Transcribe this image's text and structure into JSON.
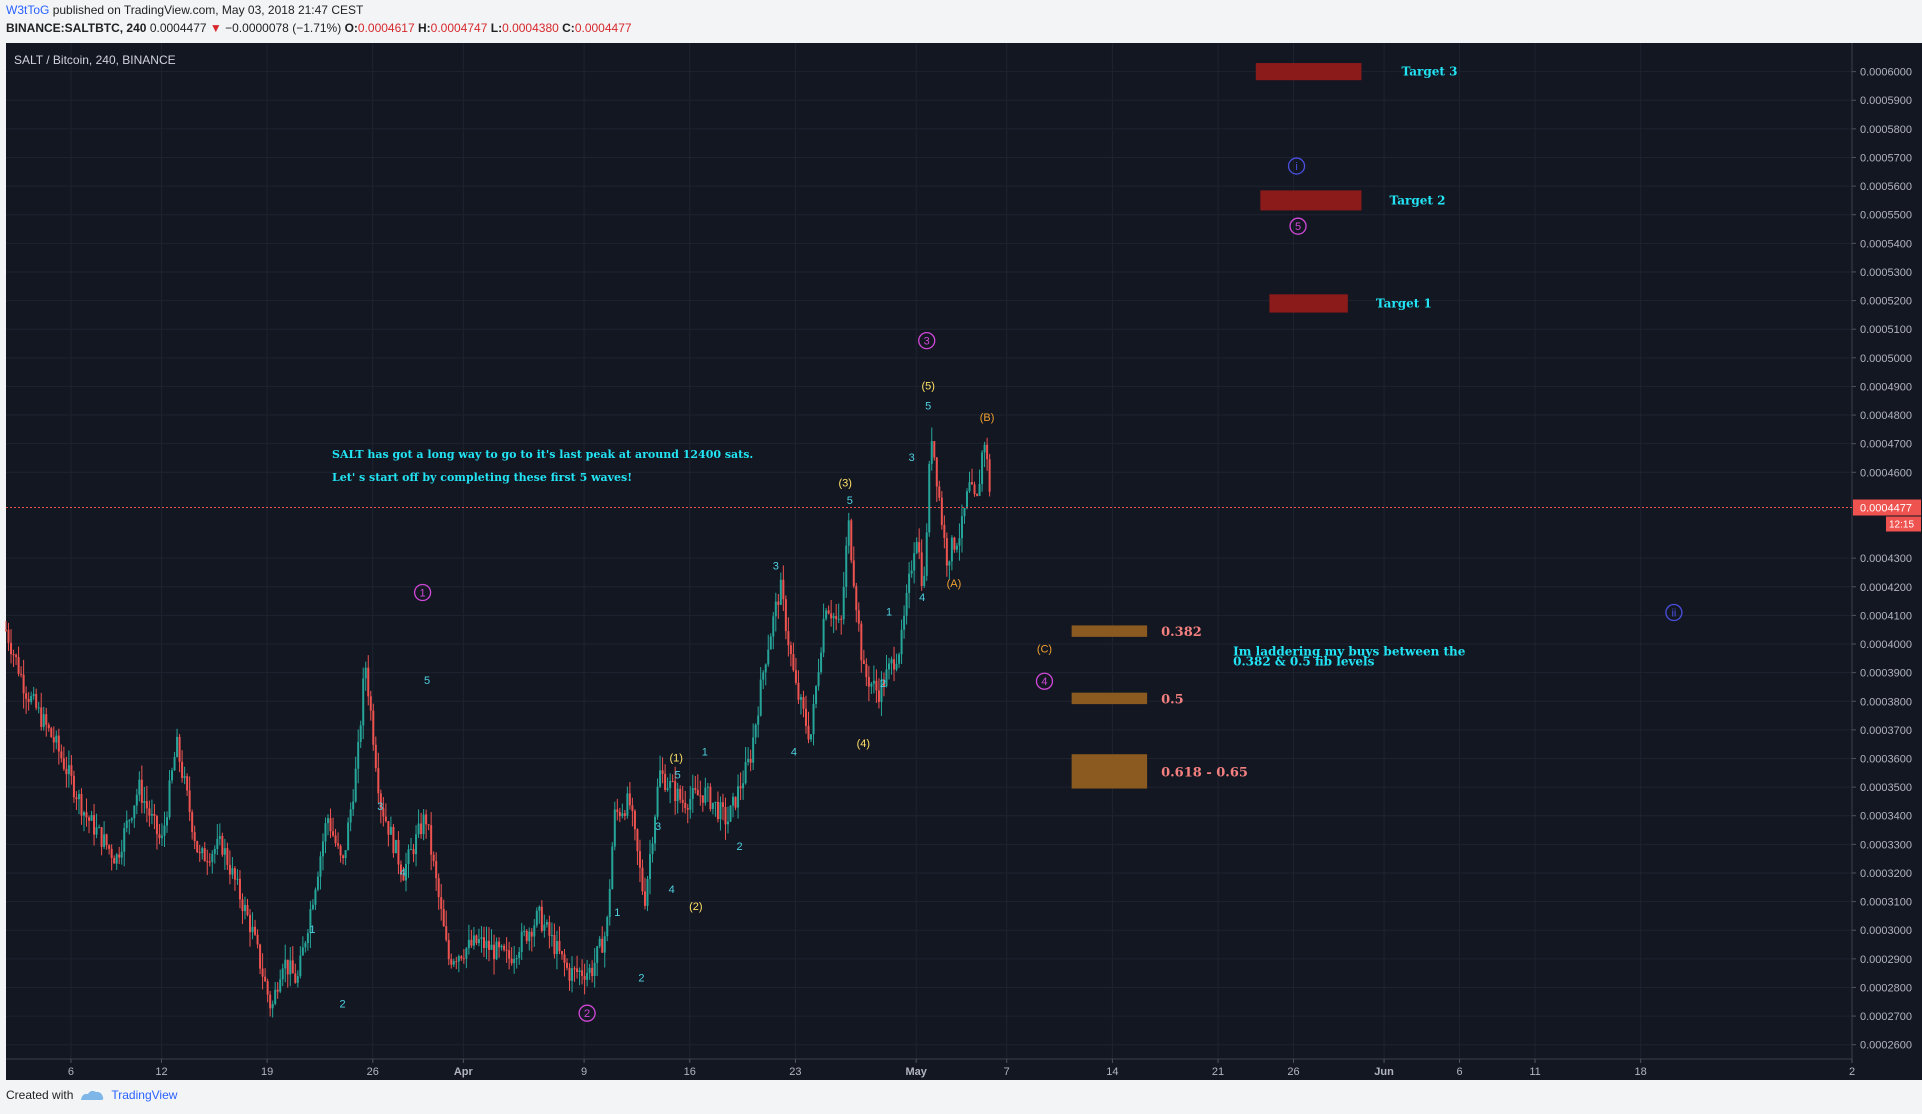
{
  "header": {
    "author": "W3tToG",
    "published_text": "published on TradingView.com, May 03, 2018 21:47 CEST",
    "symbol": "BINANCE:SALTBTC, 240",
    "last": "0.0004477",
    "change": "−0.0000078 (−1.71%)",
    "o_label": "O:",
    "o_value": "0.0004617",
    "h_label": "H:",
    "h_value": "0.0004747",
    "l_label": "L:",
    "l_value": "0.0004380",
    "c_label": "C:",
    "c_value": "0.0004477"
  },
  "footer": {
    "created_with": "Created with",
    "brand": "TradingView"
  },
  "chart_data": {
    "type": "candlestick",
    "title": "SALT / Bitcoin, 240, BINANCE",
    "ylim": [
      0.000255,
      0.00061
    ],
    "y_ticks": [
      "0.0006000",
      "0.0005900",
      "0.0005800",
      "0.0005700",
      "0.0005600",
      "0.0005500",
      "0.0005400",
      "0.0005300",
      "0.0005200",
      "0.0005100",
      "0.0005000",
      "0.0004900",
      "0.0004800",
      "0.0004700",
      "0.0004600",
      "0.0004300",
      "0.0004200",
      "0.0004100",
      "0.0004000",
      "0.0003900",
      "0.0003800",
      "0.0003700",
      "0.0003600",
      "0.0003500",
      "0.0003400",
      "0.0003300",
      "0.0003200",
      "0.0003100",
      "0.0003000",
      "0.0002900",
      "0.0002800",
      "0.0002700",
      "0.0002600"
    ],
    "x_ticks": [
      {
        "label": "6",
        "day": 6
      },
      {
        "label": "12",
        "day": 12
      },
      {
        "label": "19",
        "day": 19
      },
      {
        "label": "26",
        "day": 26
      },
      {
        "label": "Apr",
        "day": 32
      },
      {
        "label": "9",
        "day": 40
      },
      {
        "label": "16",
        "day": 47
      },
      {
        "label": "23",
        "day": 54
      },
      {
        "label": "May",
        "day": 62
      },
      {
        "label": "7",
        "day": 68
      },
      {
        "label": "14",
        "day": 75
      },
      {
        "label": "21",
        "day": 82
      },
      {
        "label": "26",
        "day": 87
      },
      {
        "label": "Jun",
        "day": 93
      },
      {
        "label": "6",
        "day": 98
      },
      {
        "label": "11",
        "day": 103
      },
      {
        "label": "18",
        "day": 110
      },
      {
        "label": "2",
        "day": 124
      }
    ],
    "x_range_days": [
      1.7,
      124
    ],
    "price_path": [
      {
        "day": 1.7,
        "price": 0.000405
      },
      {
        "day": 3,
        "price": 0.000384
      },
      {
        "day": 5,
        "price": 0.000365
      },
      {
        "day": 7,
        "price": 0.00034
      },
      {
        "day": 9,
        "price": 0.000325
      },
      {
        "day": 10.5,
        "price": 0.00035
      },
      {
        "day": 12,
        "price": 0.00033
      },
      {
        "day": 13,
        "price": 0.000365
      },
      {
        "day": 14.5,
        "price": 0.000325
      },
      {
        "day": 16,
        "price": 0.00033
      },
      {
        "day": 18,
        "price": 0.0003
      },
      {
        "day": 19.3,
        "price": 0.000272
      },
      {
        "day": 20,
        "price": 0.00029
      },
      {
        "day": 21,
        "price": 0.000282
      },
      {
        "day": 23,
        "price": 0.00034
      },
      {
        "day": 24,
        "price": 0.000322
      },
      {
        "day": 25,
        "price": 0.00036
      },
      {
        "day": 25.5,
        "price": 0.000394
      },
      {
        "day": 26.5,
        "price": 0.000345
      },
      {
        "day": 28,
        "price": 0.00032
      },
      {
        "day": 29.5,
        "price": 0.00034
      },
      {
        "day": 31,
        "price": 0.00029
      },
      {
        "day": 33,
        "price": 0.000296
      },
      {
        "day": 35,
        "price": 0.00029
      },
      {
        "day": 37,
        "price": 0.000305
      },
      {
        "day": 39,
        "price": 0.000285
      },
      {
        "day": 40.5,
        "price": 0.000286
      },
      {
        "day": 41.5,
        "price": 0.0003
      },
      {
        "day": 42,
        "price": 0.00034
      },
      {
        "day": 43,
        "price": 0.000345
      },
      {
        "day": 44,
        "price": 0.00031
      },
      {
        "day": 45,
        "price": 0.000355
      },
      {
        "day": 46.5,
        "price": 0.000345
      },
      {
        "day": 48,
        "price": 0.000348
      },
      {
        "day": 49.5,
        "price": 0.000338
      },
      {
        "day": 51,
        "price": 0.00036
      },
      {
        "day": 52,
        "price": 0.000395
      },
      {
        "day": 53,
        "price": 0.00042
      },
      {
        "day": 54,
        "price": 0.000385
      },
      {
        "day": 55,
        "price": 0.000367
      },
      {
        "day": 56,
        "price": 0.000415
      },
      {
        "day": 57,
        "price": 0.000405
      },
      {
        "day": 57.5,
        "price": 0.000443
      },
      {
        "day": 58.5,
        "price": 0.00039
      },
      {
        "day": 59.5,
        "price": 0.000383
      },
      {
        "day": 61,
        "price": 0.0004
      },
      {
        "day": 62,
        "price": 0.00044
      },
      {
        "day": 62.5,
        "price": 0.000418
      },
      {
        "day": 63,
        "price": 0.000475
      },
      {
        "day": 64,
        "price": 0.00043
      },
      {
        "day": 65,
        "price": 0.00044
      },
      {
        "day": 65.5,
        "price": 0.000455
      },
      {
        "day": 66,
        "price": 0.000448
      },
      {
        "day": 66.5,
        "price": 0.000473
      },
      {
        "day": 67,
        "price": 0.000448
      }
    ],
    "last_price": {
      "value": "0.0004477",
      "countdown": "12:15"
    },
    "wave_labels": [
      {
        "text": "1",
        "day": 22,
        "price": 0.000299,
        "color": "#4dd0e1"
      },
      {
        "text": "2",
        "day": 24,
        "price": 0.000273,
        "color": "#4dd0e1"
      },
      {
        "text": "3",
        "day": 26.5,
        "price": 0.000342,
        "color": "#4dd0e1"
      },
      {
        "text": "4",
        "day": 28,
        "price": 0.000319,
        "color": "#4dd0e1"
      },
      {
        "text": "5",
        "day": 29.6,
        "price": 0.000386,
        "color": "#4dd0e1"
      },
      {
        "text": "1",
        "day": 42.2,
        "price": 0.000305,
        "color": "#4dd0e1"
      },
      {
        "text": "2",
        "day": 43.8,
        "price": 0.000282,
        "color": "#4dd0e1"
      },
      {
        "text": "3",
        "day": 44.9,
        "price": 0.000335,
        "color": "#4dd0e1"
      },
      {
        "text": "4",
        "day": 45.8,
        "price": 0.000313,
        "color": "#4dd0e1"
      },
      {
        "text": "5",
        "day": 46.2,
        "price": 0.000353,
        "color": "#4dd0e1"
      },
      {
        "text": "1",
        "day": 48,
        "price": 0.000361,
        "color": "#4dd0e1"
      },
      {
        "text": "2",
        "day": 50.3,
        "price": 0.000328,
        "color": "#4dd0e1"
      },
      {
        "text": "3",
        "day": 52.7,
        "price": 0.000426,
        "color": "#4dd0e1"
      },
      {
        "text": "4",
        "day": 53.9,
        "price": 0.000361,
        "color": "#4dd0e1"
      },
      {
        "text": "5",
        "day": 57.6,
        "price": 0.000449,
        "color": "#4dd0e1"
      },
      {
        "text": "1",
        "day": 60.2,
        "price": 0.00041,
        "color": "#4dd0e1"
      },
      {
        "text": "2",
        "day": 59.8,
        "price": 0.000385,
        "color": "#4dd0e1"
      },
      {
        "text": "3",
        "day": 61.7,
        "price": 0.000464,
        "color": "#4dd0e1"
      },
      {
        "text": "4",
        "day": 62.4,
        "price": 0.000415,
        "color": "#4dd0e1"
      },
      {
        "text": "5",
        "day": 62.8,
        "price": 0.000482,
        "color": "#4dd0e1"
      },
      {
        "text": "(1)",
        "day": 46.1,
        "price": 0.000359,
        "color": "#ffe066"
      },
      {
        "text": "(2)",
        "day": 47.4,
        "price": 0.000307,
        "color": "#ffe066"
      },
      {
        "text": "(3)",
        "day": 57.3,
        "price": 0.000455,
        "color": "#ffe066"
      },
      {
        "text": "(4)",
        "day": 58.5,
        "price": 0.000364,
        "color": "#ffe066"
      },
      {
        "text": "(5)",
        "day": 62.8,
        "price": 0.000489,
        "color": "#ffe066"
      },
      {
        "text": "(A)",
        "day": 64.5,
        "price": 0.00042,
        "color": "#f0a030"
      },
      {
        "text": "(B)",
        "day": 66.7,
        "price": 0.000478,
        "color": "#f0a030"
      },
      {
        "text": "(C)",
        "day": 70.5,
        "price": 0.000397,
        "color": "#f0a030"
      }
    ],
    "circle_labels": [
      {
        "text": "1",
        "day": 29.3,
        "price": 0.000418,
        "color": "#d048d8"
      },
      {
        "text": "2",
        "day": 40.2,
        "price": 0.000271,
        "color": "#d048d8"
      },
      {
        "text": "3",
        "day": 62.7,
        "price": 0.000506,
        "color": "#d048d8"
      },
      {
        "text": "4",
        "day": 70.5,
        "price": 0.000387,
        "color": "#d048d8"
      },
      {
        "text": "5",
        "day": 87.3,
        "price": 0.000546,
        "color": "#d048d8"
      },
      {
        "text": "i",
        "day": 87.2,
        "price": 0.000567,
        "color": "#4a50e0"
      },
      {
        "text": "ii",
        "day": 112.2,
        "price": 0.000411,
        "color": "#4a50e0"
      }
    ],
    "targets": [
      {
        "label": "Target 3",
        "price": 0.0006,
        "day_from": 84.5,
        "day_to": 91.5,
        "height_price": 3e-06
      },
      {
        "label": "Target 2",
        "price": 0.000555,
        "day_from": 84.8,
        "day_to": 91.5,
        "height_price": 3.5e-06
      },
      {
        "label": "Target 1",
        "price": 0.000519,
        "day_from": 85.4,
        "day_to": 90.6,
        "height_price": 3.2e-06
      }
    ],
    "fib_levels": [
      {
        "label": "0.382",
        "price": 0.0004045,
        "height_price": 2e-06
      },
      {
        "label": "0.5",
        "price": 0.000381,
        "height_price": 2e-06
      },
      {
        "label": "0.618 - 0.65",
        "price": 0.0003555,
        "height_price": 6e-06
      }
    ],
    "annotations": [
      {
        "text": "SALT has got a long way to go to it's last peak at around 12400 sats.",
        "day": 23.3,
        "price": 0.000465
      },
      {
        "text": "Let' s start off by completing these first 5 waves!",
        "day": 23.3,
        "price": 0.000457
      },
      {
        "text": "Im laddering my buys between the",
        "day": 83,
        "price": 0.000396
      },
      {
        "text": "0.382 & 0.5 fib levels",
        "day": 83,
        "price": 0.0003925
      }
    ],
    "colors": {
      "background": "#131722",
      "up": "#26a69a",
      "down": "#ef5350",
      "grid": "#1e2330",
      "axis_text": "#b2b5be",
      "target": "#8b1a1a",
      "fib": "#8a5a20",
      "last_price": "#ef5350",
      "annotation": "#22e4f4",
      "target_text": "#22e4f4",
      "fib_text": "#f48080"
    }
  }
}
